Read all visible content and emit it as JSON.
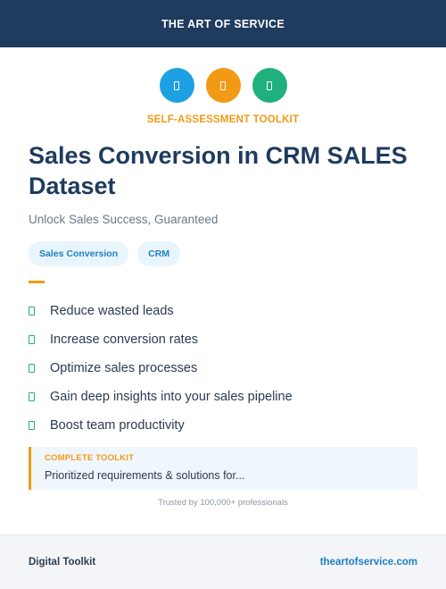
{
  "header": {
    "brand": "THE ART OF SERVICE"
  },
  "icons": [
    {
      "name": "document-icon",
      "color": "#1da1e2"
    },
    {
      "name": "clipboard-icon",
      "color": "#f29a16"
    },
    {
      "name": "checklist-icon",
      "color": "#20b07e"
    }
  ],
  "kicker": "SELF-ASSESSMENT TOOLKIT",
  "title": "Sales Conversion in CRM SALES Dataset",
  "subtitle": "Unlock Sales Success, Guaranteed",
  "tags": [
    "Sales Conversion",
    "CRM"
  ],
  "benefits": [
    "Reduce wasted leads",
    "Increase conversion rates",
    "Optimize sales processes",
    "Gain deep insights into your sales pipeline",
    "Boost team productivity"
  ],
  "callout": {
    "label": "COMPLETE TOOLKIT",
    "text": "Prioritized requirements & solutions for..."
  },
  "trust": "Trusted by 100,000+ professionals",
  "footer": {
    "left": "Digital Toolkit",
    "right": "theartofservice.com"
  },
  "colors": {
    "navy": "#1f3b5e",
    "orange": "#f29a16",
    "blue": "#1da1e2",
    "green": "#20b07e"
  }
}
